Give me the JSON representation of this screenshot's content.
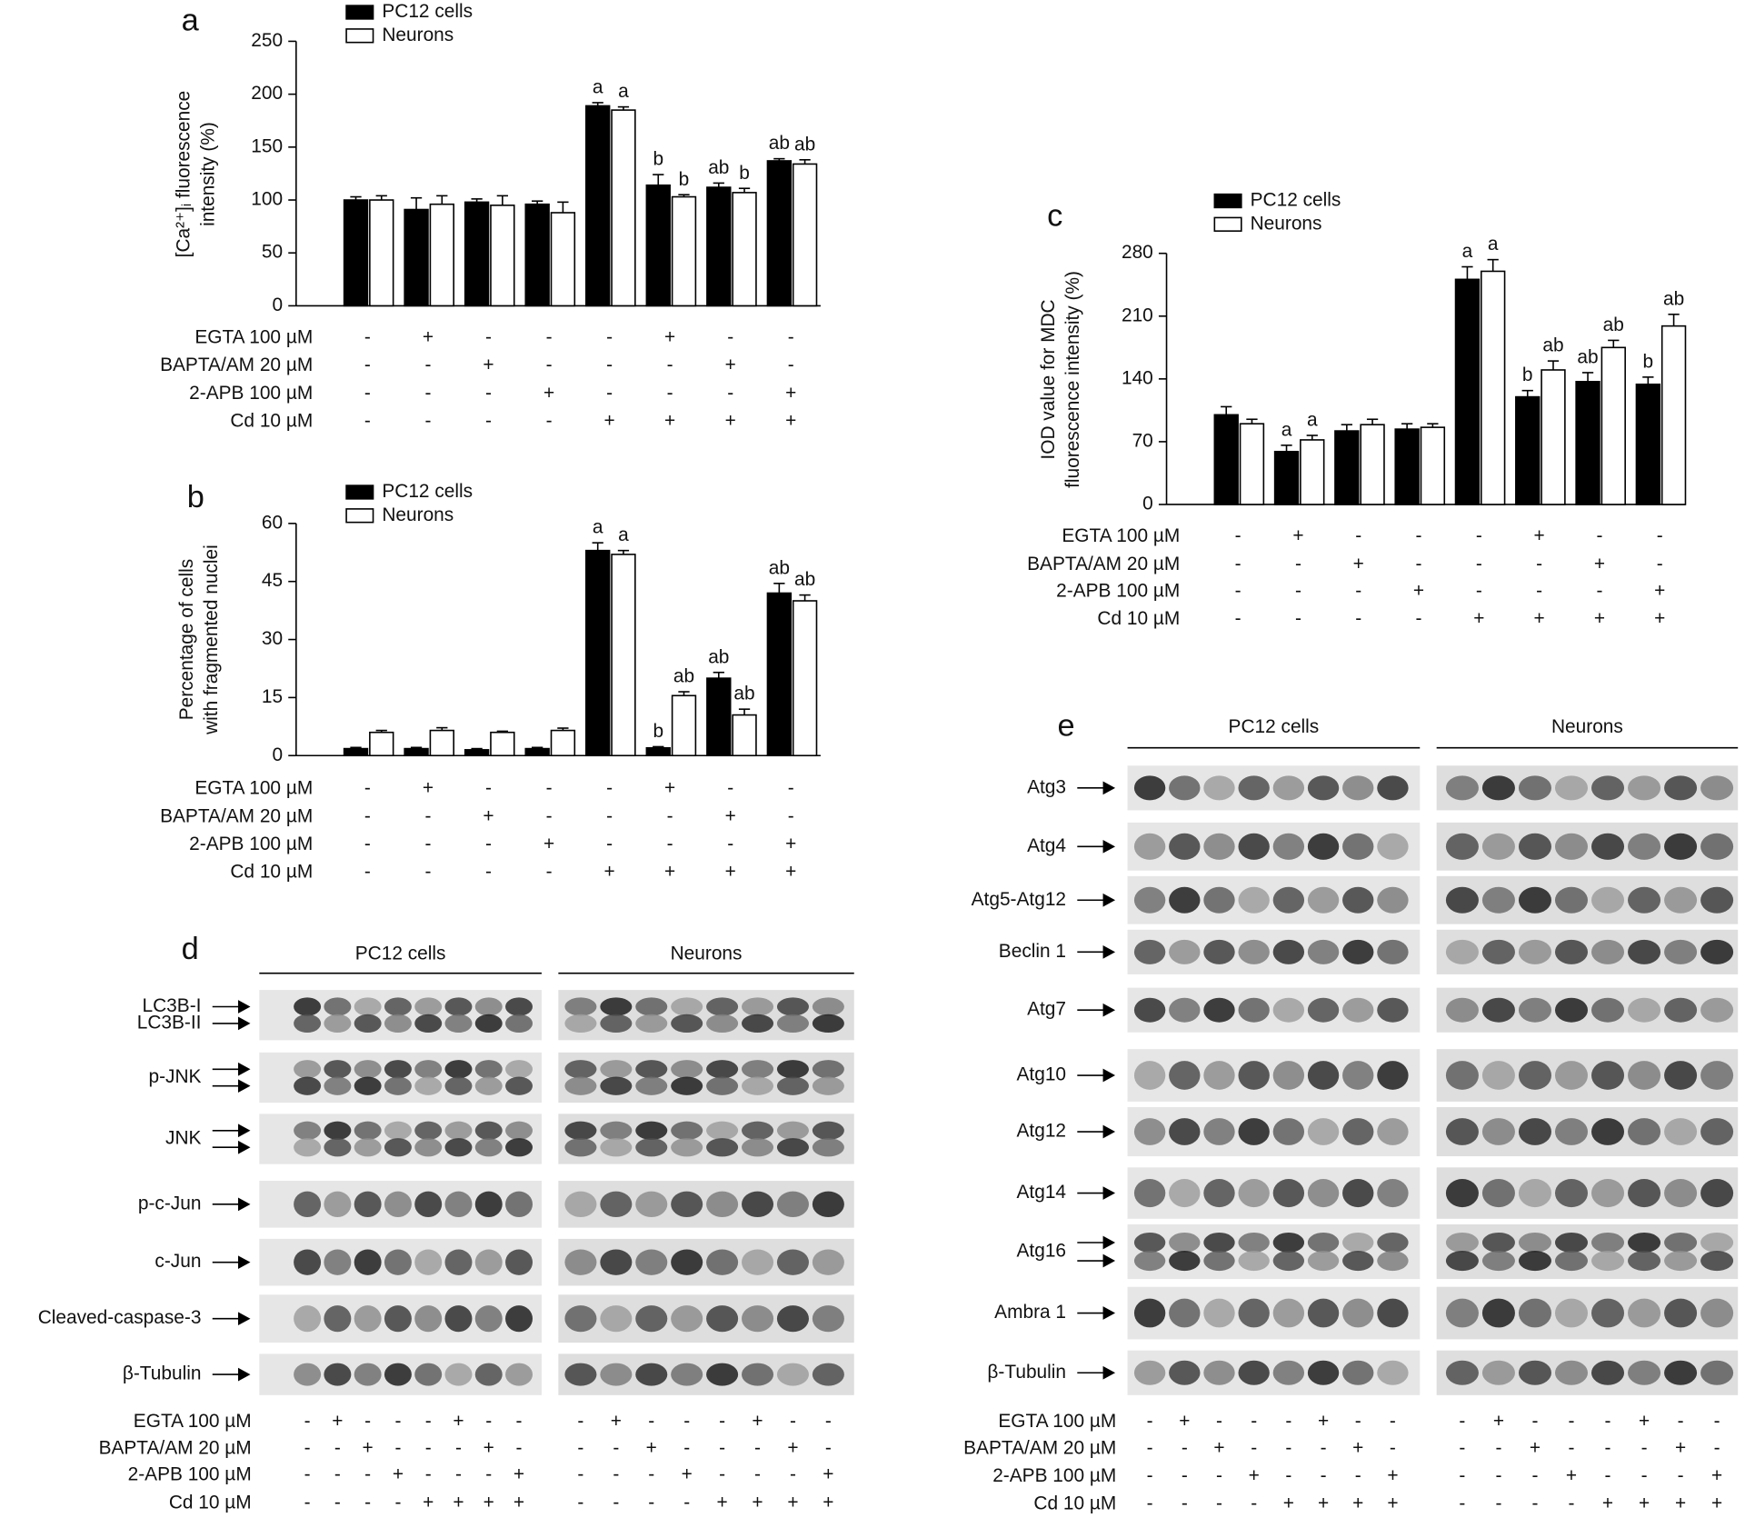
{
  "chart_data": [
    {
      "type": "bar",
      "panel": "a",
      "y_label": [
        "[Ca²⁺]ᵢ fluorescence",
        "intensity (%)"
      ],
      "ylim": [
        0,
        250
      ],
      "yticks": [
        0,
        50,
        100,
        150,
        200,
        250
      ],
      "series": [
        {
          "name": "PC12 cells",
          "color": "#000000",
          "values": [
            100,
            91,
            98,
            96,
            189,
            114,
            112,
            137
          ],
          "errors": [
            3,
            11,
            3,
            3,
            3,
            10,
            4,
            2
          ],
          "sig_labels": [
            null,
            null,
            null,
            null,
            "a",
            "b",
            "ab",
            "ab"
          ]
        },
        {
          "name": "Neurons",
          "color": "#ffffff",
          "values": [
            100,
            96,
            95,
            88,
            185,
            103,
            107,
            134
          ],
          "errors": [
            4,
            8,
            9,
            10,
            3,
            2,
            4,
            4
          ],
          "sig_labels": [
            null,
            null,
            null,
            null,
            "a",
            "b",
            "b",
            "ab"
          ]
        }
      ],
      "treatments": [
        {
          "label": "EGTA 100 µM",
          "signs": [
            "-",
            "+",
            "-",
            "-",
            "-",
            "+",
            "-",
            "-"
          ]
        },
        {
          "label": "BAPTA/AM 20 µM",
          "signs": [
            "-",
            "-",
            "+",
            "-",
            "-",
            "-",
            "+",
            "-"
          ]
        },
        {
          "label": "2-APB 100 µM",
          "signs": [
            "-",
            "-",
            "-",
            "+",
            "-",
            "-",
            "-",
            "+"
          ]
        },
        {
          "label": "Cd 10 µM",
          "signs": [
            "-",
            "-",
            "-",
            "-",
            "+",
            "+",
            "+",
            "+"
          ]
        }
      ]
    },
    {
      "type": "bar",
      "panel": "b",
      "y_label": [
        "Percentage of cells",
        "with fragmented nuclei"
      ],
      "ylim": [
        0,
        60
      ],
      "yticks": [
        0,
        15,
        30,
        45,
        60
      ],
      "series": [
        {
          "name": "PC12 cells",
          "color": "#000000",
          "values": [
            1.8,
            1.8,
            1.5,
            1.8,
            53,
            2,
            20,
            42
          ],
          "errors": [
            0.3,
            0.3,
            0.3,
            0.3,
            2,
            0.3,
            1.5,
            2.5
          ],
          "sig_labels": [
            null,
            null,
            null,
            null,
            "a",
            "b",
            "ab",
            "ab"
          ]
        },
        {
          "name": "Neurons",
          "color": "#ffffff",
          "values": [
            6,
            6.5,
            6,
            6.5,
            52,
            15.5,
            10.5,
            40
          ],
          "errors": [
            0.5,
            0.7,
            0.3,
            0.6,
            1,
            1,
            1.5,
            1.5
          ],
          "sig_labels": [
            null,
            null,
            null,
            null,
            "a",
            "ab",
            "ab",
            "ab"
          ]
        }
      ],
      "treatments": [
        {
          "label": "EGTA 100 µM",
          "signs": [
            "-",
            "+",
            "-",
            "-",
            "-",
            "+",
            "-",
            "-"
          ]
        },
        {
          "label": "BAPTA/AM 20 µM",
          "signs": [
            "-",
            "-",
            "+",
            "-",
            "-",
            "-",
            "+",
            "-"
          ]
        },
        {
          "label": "2-APB 100 µM",
          "signs": [
            "-",
            "-",
            "-",
            "+",
            "-",
            "-",
            "-",
            "+"
          ]
        },
        {
          "label": "Cd 10 µM",
          "signs": [
            "-",
            "-",
            "-",
            "-",
            "+",
            "+",
            "+",
            "+"
          ]
        }
      ]
    },
    {
      "type": "bar",
      "panel": "c",
      "y_label": [
        "IOD value for MDC",
        "fluorescence intensity (%)"
      ],
      "ylim": [
        0,
        280
      ],
      "yticks": [
        0,
        70,
        140,
        210,
        280
      ],
      "series": [
        {
          "name": "PC12 cells",
          "color": "#000000",
          "values": [
            100,
            59,
            82,
            84,
            251,
            120,
            137,
            134
          ],
          "errors": [
            9,
            7,
            7,
            6,
            14,
            7,
            10,
            8
          ],
          "sig_labels": [
            null,
            "a",
            null,
            null,
            "a",
            "b",
            "ab",
            "b"
          ]
        },
        {
          "name": "Neurons",
          "color": "#ffffff",
          "values": [
            90,
            72,
            89,
            86,
            260,
            150,
            175,
            199
          ],
          "errors": [
            5,
            5,
            6,
            4,
            13,
            10,
            8,
            13
          ],
          "sig_labels": [
            null,
            "a",
            null,
            null,
            "a",
            "ab",
            "ab",
            "ab"
          ]
        }
      ],
      "treatments": [
        {
          "label": "EGTA 100 µM",
          "signs": [
            "-",
            "+",
            "-",
            "-",
            "-",
            "+",
            "-",
            "-"
          ]
        },
        {
          "label": "BAPTA/AM 20 µM",
          "signs": [
            "-",
            "-",
            "+",
            "-",
            "-",
            "-",
            "+",
            "-"
          ]
        },
        {
          "label": "2-APB 100 µM",
          "signs": [
            "-",
            "-",
            "-",
            "+",
            "-",
            "-",
            "-",
            "+"
          ]
        },
        {
          "label": "Cd 10 µM",
          "signs": [
            "-",
            "-",
            "-",
            "-",
            "+",
            "+",
            "+",
            "+"
          ]
        }
      ]
    }
  ],
  "blots": [
    {
      "panel": "d",
      "groups": [
        "PC12 cells",
        "Neurons"
      ],
      "rows": [
        {
          "labels": [
            "LC3B-I",
            "LC3B-II"
          ]
        },
        {
          "labels": [
            "p-JNK"
          ]
        },
        {
          "labels": [
            "JNK"
          ]
        },
        {
          "labels": [
            "p-c-Jun"
          ]
        },
        {
          "labels": [
            "c-Jun"
          ]
        },
        {
          "labels": [
            "Cleaved-caspase-3"
          ]
        },
        {
          "labels": [
            "β-Tubulin"
          ]
        }
      ],
      "treatments": [
        {
          "label": "EGTA 100 µM",
          "signs": [
            "-",
            "+",
            "-",
            "-",
            "-",
            "+",
            "-",
            "-",
            "-",
            "+",
            "-",
            "-",
            "-",
            "+",
            "-",
            "-"
          ]
        },
        {
          "label": "BAPTA/AM 20 µM",
          "signs": [
            "-",
            "-",
            "+",
            "-",
            "-",
            "-",
            "+",
            "-",
            "-",
            "-",
            "+",
            "-",
            "-",
            "-",
            "+",
            "-"
          ]
        },
        {
          "label": "2-APB 100 µM",
          "signs": [
            "-",
            "-",
            "-",
            "+",
            "-",
            "-",
            "-",
            "+",
            "-",
            "-",
            "-",
            "+",
            "-",
            "-",
            "-",
            "+"
          ]
        },
        {
          "label": "Cd 10 µM",
          "signs": [
            "-",
            "-",
            "-",
            "-",
            "+",
            "+",
            "+",
            "+",
            "-",
            "-",
            "-",
            "-",
            "+",
            "+",
            "+",
            "+"
          ]
        }
      ]
    },
    {
      "panel": "e",
      "groups": [
        "PC12 cells",
        "Neurons"
      ],
      "rows": [
        {
          "labels": [
            "Atg3"
          ]
        },
        {
          "labels": [
            "Atg4"
          ]
        },
        {
          "labels": [
            "Atg5-Atg12"
          ]
        },
        {
          "labels": [
            "Beclin 1"
          ]
        },
        {
          "labels": [
            "Atg7"
          ]
        },
        {
          "labels": [
            "Atg10"
          ]
        },
        {
          "labels": [
            "Atg12"
          ]
        },
        {
          "labels": [
            "Atg14"
          ]
        },
        {
          "labels": [
            "Atg16"
          ]
        },
        {
          "labels": [
            "Ambra 1"
          ]
        },
        {
          "labels": [
            "β-Tubulin"
          ]
        }
      ],
      "treatments": [
        {
          "label": "EGTA 100 µM",
          "signs": [
            "-",
            "+",
            "-",
            "-",
            "-",
            "+",
            "-",
            "-",
            "-",
            "+",
            "-",
            "-",
            "-",
            "+",
            "-",
            "-"
          ]
        },
        {
          "label": "BAPTA/AM 20 µM",
          "signs": [
            "-",
            "-",
            "+",
            "-",
            "-",
            "-",
            "+",
            "-",
            "-",
            "-",
            "+",
            "-",
            "-",
            "-",
            "+",
            "-"
          ]
        },
        {
          "label": "2-APB 100 µM",
          "signs": [
            "-",
            "-",
            "-",
            "+",
            "-",
            "-",
            "-",
            "+",
            "-",
            "-",
            "-",
            "+",
            "-",
            "-",
            "-",
            "+"
          ]
        },
        {
          "label": "Cd 10 µM",
          "signs": [
            "-",
            "-",
            "-",
            "-",
            "+",
            "+",
            "+",
            "+",
            "-",
            "-",
            "-",
            "-",
            "+",
            "+",
            "+",
            "+"
          ]
        }
      ]
    }
  ]
}
